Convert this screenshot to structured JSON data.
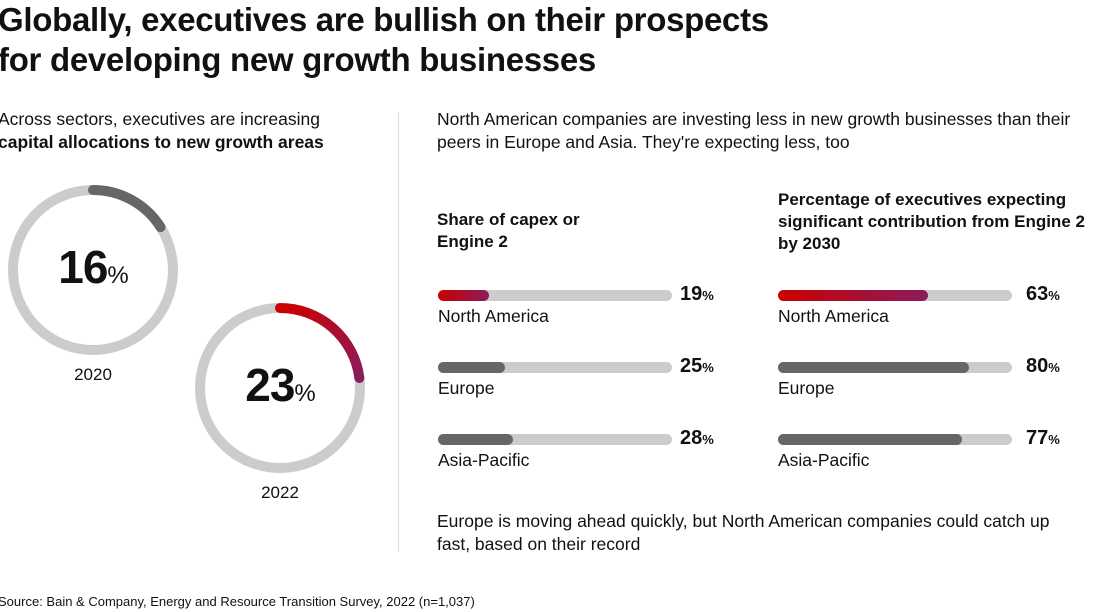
{
  "title_line1": "Globally, executives are bullish on their prospects",
  "title_line2": "for developing new growth businesses",
  "left_subtitle_normal": "Across sectors, executives are increasing",
  "left_subtitle_bold": "capital allocations to new growth areas",
  "right_subtitle": "North American companies are investing less in new growth businesses than their peers in Europe and Asia. They're expecting less, too",
  "footnote": "Europe is moving ahead quickly, but North American companies could catch up fast, based on their record",
  "source": "Source: Bain & Company, Energy and Resource Transition Survey, 2022 (n=1,037)",
  "colors": {
    "track": "#cccccc",
    "gray": "#666666",
    "gradient_start": "#cc0000",
    "gradient_end": "#8a1c5c"
  },
  "chart_data": [
    {
      "type": "pie",
      "variant": "donut",
      "categories": [
        "2020",
        "2022"
      ],
      "values": [
        16,
        23
      ],
      "unit": "%",
      "highlight": "2022"
    },
    {
      "type": "bar",
      "orientation": "horizontal",
      "title": "Share of capex or Engine 2",
      "categories": [
        "North America",
        "Europe",
        "Asia-Pacific"
      ],
      "values": [
        19,
        25,
        28
      ],
      "unit": "%",
      "highlight": "North America"
    },
    {
      "type": "bar",
      "orientation": "horizontal",
      "title": "Percentage of executives expecting significant contribution from Engine 2 by 2030",
      "categories": [
        "North America",
        "Europe",
        "Asia-Pacific"
      ],
      "values": [
        63,
        80,
        77
      ],
      "unit": "%",
      "highlight": "North America"
    }
  ]
}
